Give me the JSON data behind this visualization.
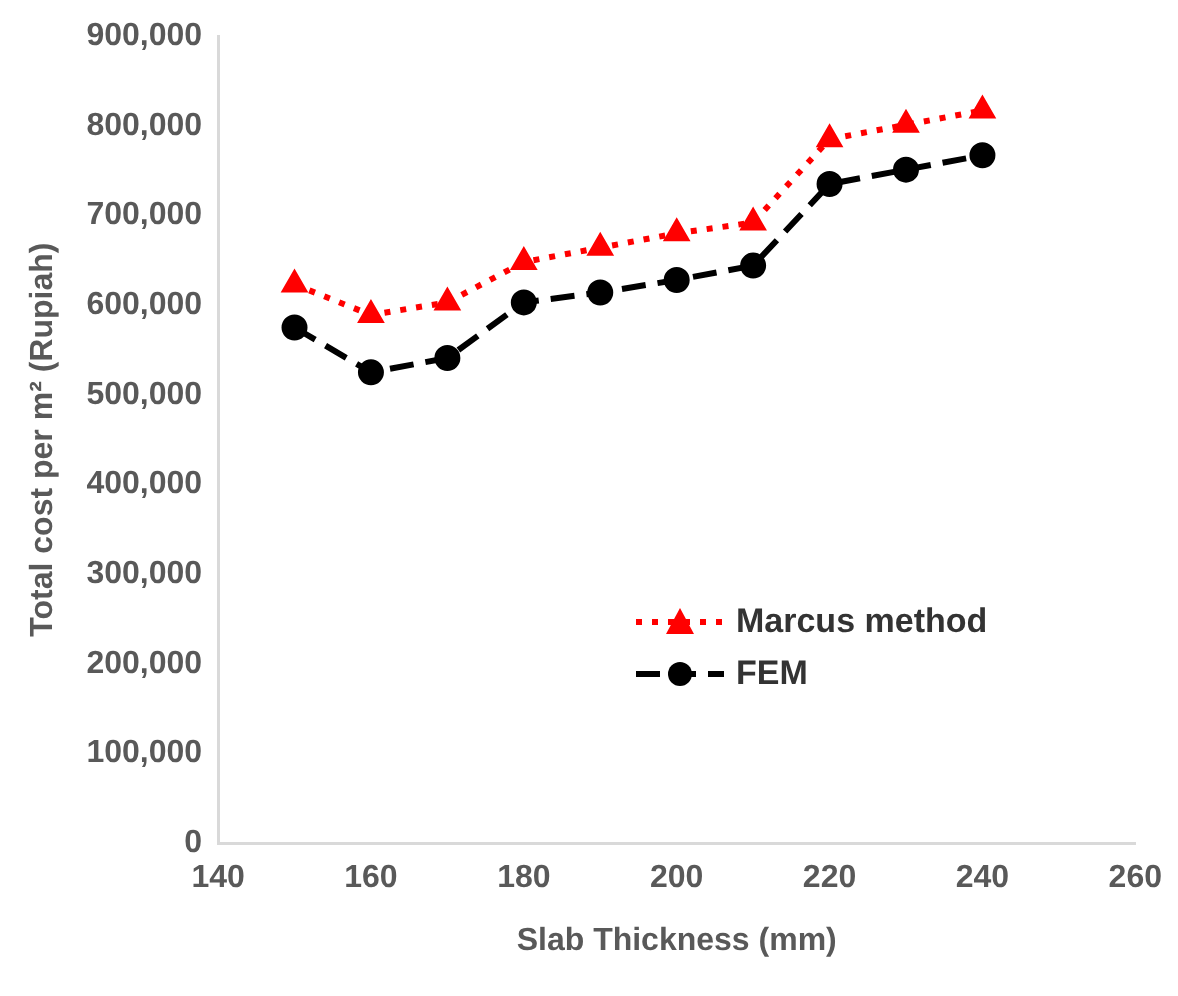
{
  "chart_data": {
    "type": "line",
    "xlabel": "Slab Thickness (mm)",
    "ylabel": "Total cost per m² (Rupiah)",
    "x": [
      150,
      160,
      170,
      180,
      190,
      200,
      210,
      220,
      230,
      240
    ],
    "xlim": [
      140,
      260
    ],
    "xticks": [
      140,
      160,
      180,
      200,
      220,
      240,
      260
    ],
    "ylim": [
      0,
      900000
    ],
    "yticks": [
      {
        "value": 0,
        "label": "0"
      },
      {
        "value": 100000,
        "label": "100,000"
      },
      {
        "value": 200000,
        "label": "200,000"
      },
      {
        "value": 300000,
        "label": "300,000"
      },
      {
        "value": 400000,
        "label": "400,000"
      },
      {
        "value": 500000,
        "label": "500,000"
      },
      {
        "value": 600000,
        "label": "600,000"
      },
      {
        "value": 700000,
        "label": "700,000"
      },
      {
        "value": 800000,
        "label": "800,000"
      },
      {
        "value": 900000,
        "label": "900,000"
      }
    ],
    "grid": false,
    "legend": "bottom right",
    "series": [
      {
        "name": "Marcus method",
        "color": "#ff0000",
        "marker": "triangle",
        "line_style": "dotted",
        "values": [
          623000,
          589000,
          603000,
          648000,
          664000,
          680000,
          692000,
          785000,
          801000,
          817000
        ]
      },
      {
        "name": "FEM",
        "color": "#000000",
        "marker": "circle",
        "line_style": "dashed",
        "values": [
          575000,
          525000,
          541000,
          603000,
          614000,
          628000,
          644000,
          735000,
          751000,
          767000
        ]
      }
    ]
  }
}
